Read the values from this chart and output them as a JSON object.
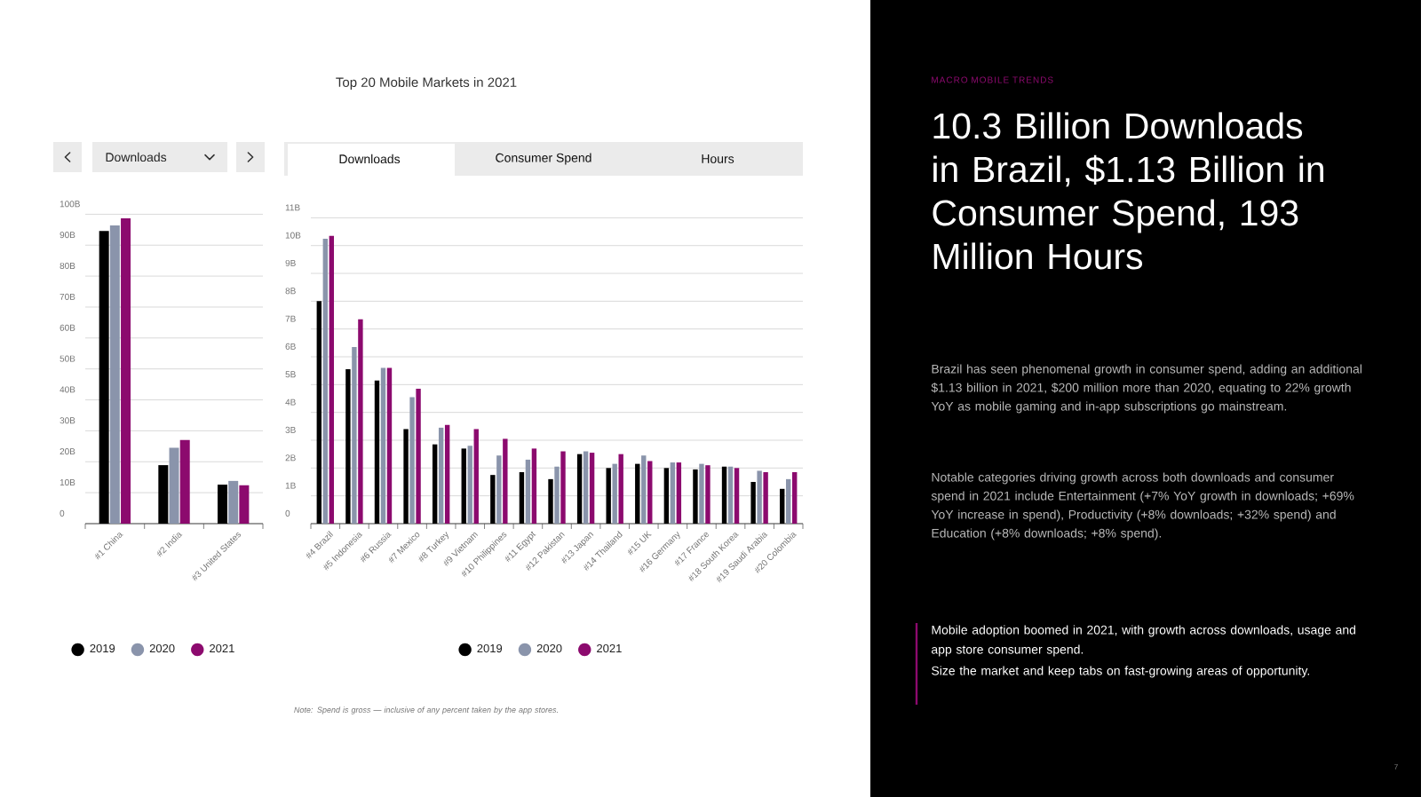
{
  "chart_data": [
    {
      "type": "bar",
      "categories": [
        "#1 China",
        "#2 India",
        "#3 United States"
      ],
      "series": [
        {
          "name": "2019",
          "color": "#000000",
          "values": [
            94.6,
            18.9,
            12.6
          ]
        },
        {
          "name": "2020",
          "color": "#8a94ab",
          "values": [
            96.4,
            24.5,
            13.8
          ]
        },
        {
          "name": "2021",
          "color": "#8c0a6e",
          "values": [
            98.7,
            27.0,
            12.4
          ]
        }
      ],
      "ylim": [
        0,
        100
      ],
      "yticks": [
        0,
        {
          "value": 10,
          "label": "10B"
        },
        {
          "value": 20,
          "label": "20B"
        },
        {
          "value": 30,
          "label": "30B"
        },
        {
          "value": 40,
          "label": "40B"
        },
        {
          "value": 50,
          "label": "50B"
        },
        {
          "value": 60,
          "label": "60B"
        },
        {
          "value": 70,
          "label": "70B"
        },
        {
          "value": 80,
          "label": "80B"
        },
        {
          "value": 90,
          "label": "90B"
        },
        {
          "value": 100,
          "label": "100B"
        }
      ],
      "grid": "y",
      "legend": "bottom",
      "annotations": [
        "Downloads"
      ]
    },
    {
      "type": "bar",
      "title": "Top 20 Mobile Markets in 2021",
      "categories": [
        "#4 Brazil",
        "#5 Indonesia",
        "#6 Russia",
        "#7 Mexico",
        "#8 Turkey",
        "#9 Vietnam",
        "#10 Philippines",
        "#11 Egypt",
        "#12 Pakistan",
        "#13 Japan",
        "#14 Thailand",
        "#15 UK",
        "#16 Germany",
        "#17 France",
        "#18 South Korea",
        "#19 Saudi Arabia",
        "#20 Colombia"
      ],
      "series": [
        {
          "name": "2019",
          "color": "#000000",
          "values": [
            8.0,
            5.55,
            5.15,
            3.4,
            2.85,
            2.7,
            1.75,
            1.85,
            1.6,
            2.5,
            2.0,
            2.15,
            2.0,
            1.95,
            2.05,
            1.5,
            1.25
          ]
        },
        {
          "name": "2020",
          "color": "#8a94ab",
          "values": [
            10.25,
            6.35,
            5.6,
            4.55,
            3.45,
            2.8,
            2.45,
            2.3,
            2.05,
            2.6,
            2.15,
            2.45,
            2.2,
            2.15,
            2.05,
            1.9,
            1.6
          ]
        },
        {
          "name": "2021",
          "color": "#8c0a6e",
          "values": [
            10.35,
            7.35,
            5.6,
            4.85,
            3.55,
            3.4,
            3.05,
            2.7,
            2.6,
            2.55,
            2.5,
            2.25,
            2.2,
            2.1,
            2.0,
            1.85,
            1.85
          ]
        }
      ],
      "ylim": [
        0,
        11
      ],
      "yticks": [
        0,
        {
          "value": 1,
          "label": "1B"
        },
        {
          "value": 2,
          "label": "2B"
        },
        {
          "value": 3,
          "label": "3B"
        },
        {
          "value": 4,
          "label": "4B"
        },
        {
          "value": 5,
          "label": "5B"
        },
        {
          "value": 6,
          "label": "6B"
        },
        {
          "value": 7,
          "label": "7B"
        },
        {
          "value": 8,
          "label": "8B"
        },
        {
          "value": 9,
          "label": "9B"
        },
        {
          "value": 10,
          "label": "10B"
        },
        {
          "value": 11,
          "label": "11B"
        }
      ],
      "grid": "y",
      "legend": "bottom",
      "annotations": [
        "Downloads",
        "Consumer Spend",
        "Hours",
        "Note: Spend is gross — inclusive of any percent taken by the app stores."
      ]
    },
    {
      "type": "other",
      "subtitle": "MACRO MOBILE TRENDS",
      "title": "10.3 Billion Downloads in Brazil, $1.13 Billion in Consumer Spend, 193 Million Hours",
      "annotations": [
        "Brazil has seen phenomenal growth in consumer spend, adding an additional $1.13 billion in 2021, $200 million more than 2020, equating to 22% growth YoY as mobile gaming and in-app subscriptions go mainstream.",
        "Notable categories driving growth across both downloads and consumer spend in 2021 include Entertainment (+7% YoY growth in downloads; +69% YoY increase in spend), Productivity (+8% downloads; +32% spend) and Education (+8% downloads; +8% spend).",
        "Mobile adoption boomed in 2021, with growth across downloads, usage and app store consumer spend.",
        "Size the market and keep tabs on fast-growing areas of opportunity.",
        "7"
      ]
    }
  ]
}
